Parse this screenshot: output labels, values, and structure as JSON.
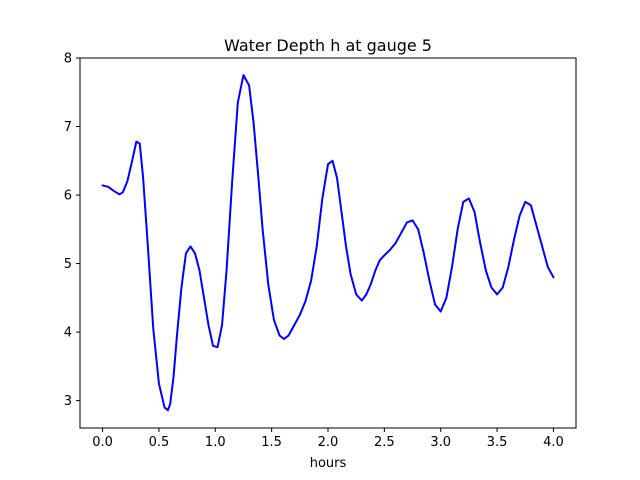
{
  "chart_data": {
    "type": "line",
    "title": "Water Depth h at gauge 5",
    "xlabel": "hours",
    "ylabel": "",
    "xlim": [
      -0.2,
      4.2
    ],
    "ylim": [
      2.6,
      8.0
    ],
    "x_ticks": [
      0.0,
      0.5,
      1.0,
      1.5,
      2.0,
      2.5,
      3.0,
      3.5,
      4.0
    ],
    "x_tick_labels": [
      "0.0",
      "0.5",
      "1.0",
      "1.5",
      "2.0",
      "2.5",
      "3.0",
      "3.5",
      "4.0"
    ],
    "y_ticks": [
      3,
      4,
      5,
      6,
      7,
      8
    ],
    "y_tick_labels": [
      "3",
      "4",
      "5",
      "6",
      "7",
      "8"
    ],
    "grid": false,
    "series": [
      {
        "color": "#0000ff",
        "x": [
          0.0,
          0.05,
          0.1,
          0.15,
          0.18,
          0.22,
          0.26,
          0.3,
          0.33,
          0.36,
          0.4,
          0.45,
          0.5,
          0.55,
          0.58,
          0.6,
          0.63,
          0.66,
          0.7,
          0.74,
          0.78,
          0.82,
          0.86,
          0.9,
          0.94,
          0.98,
          1.02,
          1.06,
          1.1,
          1.15,
          1.2,
          1.25,
          1.3,
          1.34,
          1.38,
          1.42,
          1.47,
          1.52,
          1.57,
          1.61,
          1.65,
          1.7,
          1.75,
          1.8,
          1.85,
          1.9,
          1.95,
          2.0,
          2.04,
          2.08,
          2.12,
          2.16,
          2.2,
          2.25,
          2.3,
          2.34,
          2.38,
          2.42,
          2.46,
          2.5,
          2.55,
          2.6,
          2.65,
          2.7,
          2.75,
          2.8,
          2.85,
          2.9,
          2.95,
          3.0,
          3.05,
          3.1,
          3.15,
          3.2,
          3.25,
          3.3,
          3.35,
          3.4,
          3.45,
          3.5,
          3.55,
          3.6,
          3.65,
          3.7,
          3.75,
          3.8,
          3.85,
          3.9,
          3.95,
          4.0
        ],
        "y": [
          6.14,
          6.12,
          6.06,
          6.01,
          6.04,
          6.2,
          6.48,
          6.78,
          6.75,
          6.25,
          5.3,
          4.05,
          3.25,
          2.9,
          2.86,
          2.95,
          3.35,
          3.95,
          4.65,
          5.15,
          5.25,
          5.15,
          4.9,
          4.5,
          4.1,
          3.8,
          3.78,
          4.1,
          4.9,
          6.2,
          7.35,
          7.75,
          7.6,
          7.05,
          6.3,
          5.5,
          4.7,
          4.18,
          3.95,
          3.9,
          3.95,
          4.1,
          4.25,
          4.45,
          4.75,
          5.25,
          5.95,
          6.45,
          6.5,
          6.25,
          5.75,
          5.25,
          4.85,
          4.55,
          4.46,
          4.55,
          4.7,
          4.9,
          5.05,
          5.12,
          5.2,
          5.3,
          5.45,
          5.6,
          5.63,
          5.5,
          5.15,
          4.75,
          4.4,
          4.3,
          4.5,
          4.95,
          5.5,
          5.9,
          5.95,
          5.75,
          5.3,
          4.9,
          4.65,
          4.55,
          4.65,
          4.95,
          5.35,
          5.7,
          5.9,
          5.85,
          5.55,
          5.25,
          4.95,
          4.8
        ]
      }
    ]
  }
}
